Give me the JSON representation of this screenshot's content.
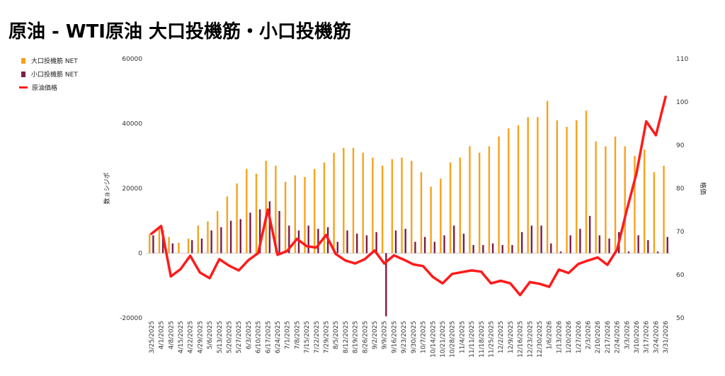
{
  "title": "原油 - WTI原油 大口投機筋・小口投機筋",
  "legend": [
    {
      "label": "大口投機筋  NET",
      "color": "#f7a21b",
      "shape": "box"
    },
    {
      "label": "小口投機筋  NET",
      "color": "#7b1e48",
      "shape": "box"
    },
    {
      "label": "原油価格",
      "color": "#ff1a1a",
      "shape": "line"
    }
  ],
  "chart_data": {
    "type": "bar",
    "ylabel": "数ョシジポ",
    "y2label": "格価",
    "ylim": [
      -20000,
      60000
    ],
    "y2lim": [
      50,
      110
    ],
    "yticks": [
      "60000",
      "40000",
      "20000",
      "0",
      "-20000"
    ],
    "y2ticks": [
      "110",
      "100",
      "90",
      "80",
      "70",
      "60",
      "50"
    ],
    "categories": [
      "3/25/2025",
      "4/1/2025",
      "4/8/2025",
      "4/15/2025",
      "4/22/2025",
      "4/29/2025",
      "5/6/2025",
      "5/13/2025",
      "5/20/2025",
      "5/27/2025",
      "6/3/2025",
      "6/10/2025",
      "6/17/2025",
      "6/24/2025",
      "7/1/2025",
      "7/8/2025",
      "7/15/2025",
      "7/22/2025",
      "7/29/2025",
      "8/5/2025",
      "8/12/2025",
      "8/19/2025",
      "8/26/2025",
      "9/2/2025",
      "9/9/2025",
      "9/16/2025",
      "9/23/2025",
      "9/30/2025",
      "10/7/2025",
      "10/14/2025",
      "10/21/2025",
      "10/28/2025",
      "11/4/2025",
      "11/11/2025",
      "11/18/2025",
      "11/25/2025",
      "12/2/2025",
      "12/9/2025",
      "12/16/2025",
      "12/23/2025",
      "12/30/2025",
      "1/6/2026",
      "1/13/2026",
      "1/20/2026",
      "1/27/2026",
      "2/3/2026",
      "2/10/2026",
      "2/17/2026",
      "2/24/2026",
      "3/3/2026",
      "3/10/2026",
      "3/17/2026",
      "3/24/2026",
      "3/31/2026"
    ],
    "series": [
      {
        "name": "大口投機筋  NET",
        "kind": "bar",
        "color": "#f7a21b",
        "values": [
          6000,
          7500,
          5000,
          3200,
          4500,
          8500,
          9800,
          13000,
          17500,
          21500,
          26000,
          24500,
          28500,
          27000,
          22000,
          24000,
          23500,
          26000,
          28000,
          31000,
          32500,
          32500,
          31000,
          29500,
          27000,
          29000,
          29500,
          28500,
          25000,
          20500,
          23000,
          28000,
          29500,
          33000,
          31000,
          33000,
          36000,
          38500,
          39500,
          42000,
          42000,
          47000,
          41000,
          39000,
          41000,
          44000,
          34500,
          33000,
          36000,
          33000,
          30000,
          32000,
          25000,
          27000
        ]
      },
      {
        "name": "小口投機筋  NET",
        "kind": "bar",
        "color": "#7b1e48",
        "values": [
          5500,
          7000,
          3000,
          0,
          4000,
          4500,
          7000,
          8000,
          10000,
          10500,
          12500,
          13500,
          16000,
          13000,
          8500,
          7000,
          8500,
          7500,
          8000,
          3500,
          7000,
          6000,
          5500,
          6500,
          -19500,
          7000,
          7500,
          3500,
          5000,
          3500,
          5500,
          8500,
          6000,
          2500,
          2500,
          3000,
          2500,
          2500,
          6500,
          8500,
          8500,
          3000,
          500,
          5500,
          7500,
          11500,
          5500,
          4500,
          6500,
          500,
          5500,
          4000,
          500,
          5000
        ]
      },
      {
        "name": "原油価格",
        "kind": "line",
        "axis": "right",
        "color": "#ff1a1a",
        "values": [
          69.5,
          71.3,
          59.6,
          61.3,
          64.4,
          60.5,
          59.2,
          63.6,
          62.1,
          61.0,
          63.4,
          65.0,
          75.1,
          64.6,
          65.5,
          68.3,
          66.6,
          66.3,
          69.2,
          64.8,
          63.3,
          62.6,
          63.6,
          65.6,
          62.6,
          64.5,
          63.5,
          62.4,
          62.0,
          59.5,
          58.0,
          60.2,
          60.6,
          61.0,
          60.7,
          58.0,
          58.6,
          58.0,
          55.3,
          58.3,
          57.9,
          57.2,
          61.2,
          60.4,
          62.5,
          63.3,
          64.0,
          62.3,
          65.8,
          75.0,
          83.5,
          95.5,
          92.3,
          101.2
        ]
      }
    ]
  }
}
